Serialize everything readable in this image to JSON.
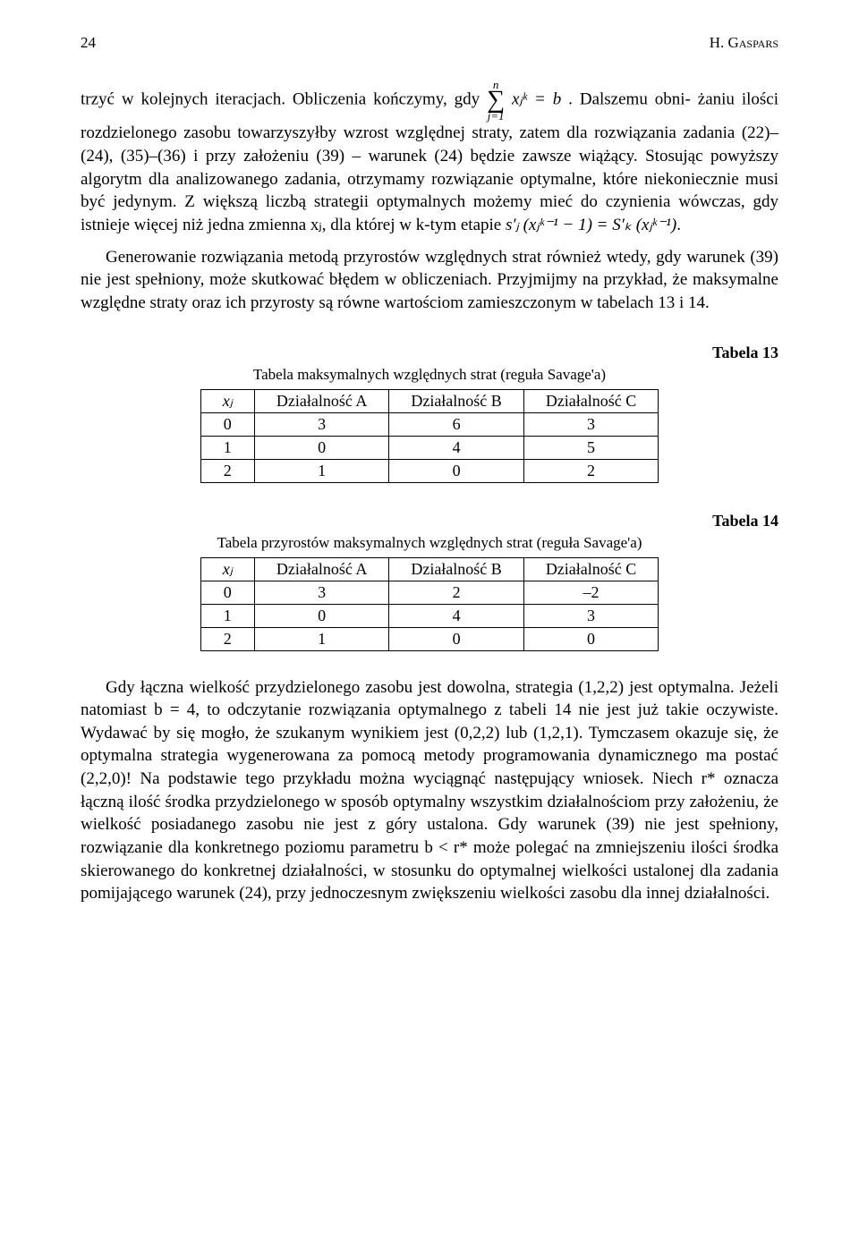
{
  "header": {
    "page_number": "24",
    "author": "H. Gaspars"
  },
  "para1": {
    "text_a": "trzyć w kolejnych iteracjach. Obliczenia kończymy, gdy ",
    "sum_top": "n",
    "sum_bottom": "j=1",
    "sum_expr": "xⱼᵏ = b",
    "text_b": ". Dalszemu obni-",
    "text_c": "żaniu ilości rozdzielonego zasobu towarzyszyłby wzrost względnej straty, zatem dla rozwiązania zadania (22)–(24), (35)–(36) i przy założeniu (39) – warunek (24) będzie zawsze wiążący. Stosując powyższy algorytm dla analizowanego zadania, otrzymamy rozwiązanie optymalne, które niekoniecznie musi być jedynym. Z większą liczbą strategii optymalnych możemy mieć do czynienia wówczas, gdy istnieje więcej niż jedna zmienna xⱼ, dla której w k-tym etapie ",
    "formula_tail": "s′ⱼ (xⱼᵏ⁻¹ − 1) = S′ₖ (xⱼᵏ⁻¹)",
    "text_d": "."
  },
  "para2": "Generowanie rozwiązania metodą przyrostów względnych strat również wtedy, gdy warunek (39) nie jest spełniony, może skutkować błędem w obliczeniach. Przyjmijmy na przykład, że maksymalne względne straty oraz ich przyrosty są równe wartościom zamieszczonym w tabelach 13 i 14.",
  "table13": {
    "label": "Tabela 13",
    "caption": "Tabela maksymalnych względnych strat (reguła Savage'a)",
    "columns": [
      "xⱼ",
      "Działalność A",
      "Działalność B",
      "Działalność C"
    ],
    "rows": [
      [
        "0",
        "3",
        "6",
        "3"
      ],
      [
        "1",
        "0",
        "4",
        "5"
      ],
      [
        "2",
        "1",
        "0",
        "2"
      ]
    ]
  },
  "table14": {
    "label": "Tabela 14",
    "caption": "Tabela przyrostów maksymalnych względnych strat (reguła Savage'a)",
    "columns": [
      "xⱼ",
      "Działalność A",
      "Działalność B",
      "Działalność C"
    ],
    "rows": [
      [
        "0",
        "3",
        "2",
        "–2"
      ],
      [
        "1",
        "0",
        "4",
        "3"
      ],
      [
        "2",
        "1",
        "0",
        "0"
      ]
    ]
  },
  "para3": "Gdy łączna wielkość przydzielonego zasobu jest dowolna, strategia (1,2,2) jest optymalna. Jeżeli natomiast b = 4, to odczytanie rozwiązania optymalnego z tabeli 14 nie jest już takie oczywiste. Wydawać by się mogło, że szukanym wynikiem jest (0,2,2) lub (1,2,1). Tymczasem okazuje się, że optymalna strategia wygenerowana za pomocą metody programowania dynamicznego ma postać (2,2,0)! Na podstawie tego przykładu można wyciągnąć następujący wniosek. Niech r* oznacza łączną ilość środka przydzielonego w sposób optymalny wszystkim działalnościom przy założeniu, że wielkość posiadanego zasobu nie jest z góry ustalona. Gdy warunek (39) nie jest spełniony, rozwiązanie dla konkretnego poziomu parametru b < r* może polegać na zmniejszeniu ilości środka skierowanego do konkretnej działalności, w stosunku do optymalnej wielkości ustalonej dla zadania pomijającego warunek (24), przy jednoczesnym zwiększeniu wielkości zasobu dla innej działalności."
}
